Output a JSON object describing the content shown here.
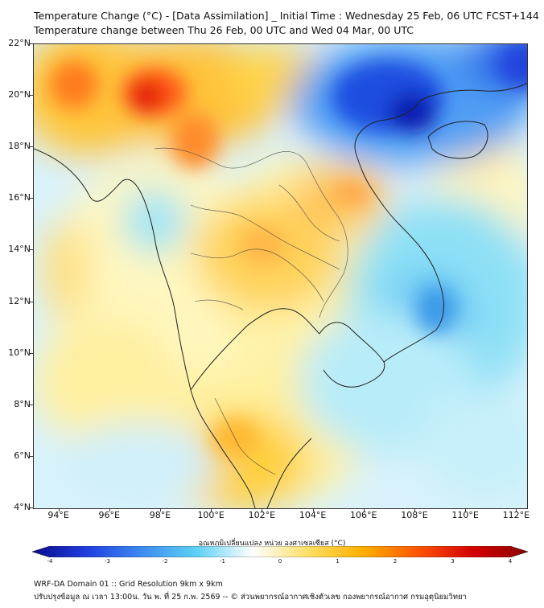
{
  "title": {
    "line1": "Temperature Change (°C) - [Data Assimilation] _ Initial Time : Wednesday 25 Feb, 06 UTC FCST+144",
    "line2": "Temperature change between Thu 26 Feb, 00 UTC and Wed 04 Mar, 00 UTC"
  },
  "map": {
    "lat_range": [
      4,
      22
    ],
    "lon_range": [
      93,
      112.4
    ],
    "lat_labels": [
      {
        "value": 22,
        "label": "22°N"
      },
      {
        "value": 20,
        "label": "20°N"
      },
      {
        "value": 18,
        "label": "18°N"
      },
      {
        "value": 16,
        "label": "16°N"
      },
      {
        "value": 14,
        "label": "14°N"
      },
      {
        "value": 12,
        "label": "12°N"
      },
      {
        "value": 10,
        "label": "10°N"
      },
      {
        "value": 8,
        "label": "8°N"
      },
      {
        "value": 6,
        "label": "6°N"
      },
      {
        "value": 4,
        "label": "4°N"
      }
    ],
    "lon_labels": [
      {
        "value": 94,
        "label": "94°E"
      },
      {
        "value": 96,
        "label": "96°E"
      },
      {
        "value": 98,
        "label": "98°E"
      },
      {
        "value": 100,
        "label": "100°E"
      },
      {
        "value": 102,
        "label": "102°E"
      },
      {
        "value": 104,
        "label": "104°E"
      },
      {
        "value": 106,
        "label": "106°E"
      },
      {
        "value": 108,
        "label": "108°E"
      },
      {
        "value": 110,
        "label": "110°E"
      },
      {
        "value": 112,
        "label": "112°E"
      }
    ]
  },
  "colorbar": {
    "title": "อุณหภูมิเปลี่ยนแปลง หน่วย องศาเซลเซียส (°C)",
    "range": [
      -4,
      4
    ],
    "labels": [
      "-4",
      "-3",
      "-2",
      "-1",
      "0",
      "1",
      "2",
      "3",
      "4"
    ],
    "colors": [
      "#0a0a8c",
      "#1f3fe0",
      "#3c8cf0",
      "#5fd2f5",
      "#ffffff",
      "#ffe066",
      "#ffb000",
      "#ff5500",
      "#d40000",
      "#8b0000"
    ]
  },
  "footer": {
    "line1": "WRF-DA Domain 01 :: Grid Resolution 9km x 9km",
    "line2": "ปรับปรุงข้อมูล ณ เวลา 13:00น. วัน พ. ที่ 25 ก.พ. 2569 -- © ส่วนพยากรณ์อากาศเชิงตัวเลข กองพยากรณ์อากาศ กรมอุตุนิยมวิทยา"
  }
}
